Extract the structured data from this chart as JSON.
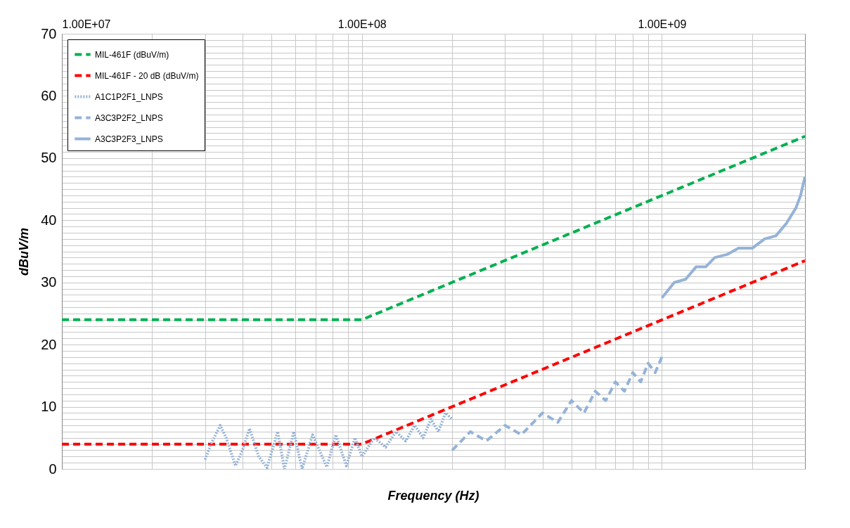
{
  "chart_data": {
    "type": "line",
    "xlabel": "Frequency (Hz)",
    "ylabel": "dBuV/m",
    "log": "x",
    "grid": true,
    "legend": "top left",
    "marker": "none",
    "xlim": [
      10000000,
      3000000000
    ],
    "xticks": [
      {
        "value": 10000000,
        "label": "1.00E+07"
      },
      {
        "value": 20000000,
        "label": null
      },
      {
        "value": 30000000,
        "label": null
      },
      {
        "value": 40000000,
        "label": null
      },
      {
        "value": 50000000,
        "label": null
      },
      {
        "value": 60000000,
        "label": null
      },
      {
        "value": 70000000,
        "label": null
      },
      {
        "value": 80000000,
        "label": null
      },
      {
        "value": 90000000,
        "label": null
      },
      {
        "value": 100000000,
        "label": "1.00E+08"
      },
      {
        "value": 200000000,
        "label": null
      },
      {
        "value": 300000000,
        "label": null
      },
      {
        "value": 400000000,
        "label": null
      },
      {
        "value": 500000000,
        "label": null
      },
      {
        "value": 600000000,
        "label": null
      },
      {
        "value": 700000000,
        "label": null
      },
      {
        "value": 800000000,
        "label": null
      },
      {
        "value": 900000000,
        "label": null
      },
      {
        "value": 1000000000,
        "label": "1.00E+09"
      },
      {
        "value": 2000000000,
        "label": null
      }
    ],
    "ylim": [
      0,
      70
    ],
    "yticks": [
      0,
      {
        "value": 1,
        "label": null
      },
      {
        "value": 2,
        "label": null
      },
      {
        "value": 3,
        "label": null
      },
      {
        "value": 4,
        "label": null
      },
      {
        "value": 5,
        "label": null
      },
      {
        "value": 6,
        "label": null
      },
      {
        "value": 7,
        "label": null
      },
      {
        "value": 8,
        "label": null
      },
      {
        "value": 9,
        "label": null
      },
      10,
      {
        "value": 11,
        "label": null
      },
      {
        "value": 12,
        "label": null
      },
      {
        "value": 13,
        "label": null
      },
      {
        "value": 14,
        "label": null
      },
      {
        "value": 15,
        "label": null
      },
      {
        "value": 16,
        "label": null
      },
      {
        "value": 17,
        "label": null
      },
      {
        "value": 18,
        "label": null
      },
      {
        "value": 19,
        "label": null
      },
      20,
      {
        "value": 21,
        "label": null
      },
      {
        "value": 22,
        "label": null
      },
      {
        "value": 23,
        "label": null
      },
      {
        "value": 24,
        "label": null
      },
      {
        "value": 25,
        "label": null
      },
      {
        "value": 26,
        "label": null
      },
      {
        "value": 27,
        "label": null
      },
      {
        "value": 28,
        "label": null
      },
      {
        "value": 29,
        "label": null
      },
      30,
      {
        "value": 31,
        "label": null
      },
      {
        "value": 32,
        "label": null
      },
      {
        "value": 33,
        "label": null
      },
      {
        "value": 34,
        "label": null
      },
      {
        "value": 35,
        "label": null
      },
      {
        "value": 36,
        "label": null
      },
      {
        "value": 37,
        "label": null
      },
      {
        "value": 38,
        "label": null
      },
      {
        "value": 39,
        "label": null
      },
      40,
      {
        "value": 41,
        "label": null
      },
      {
        "value": 42,
        "label": null
      },
      {
        "value": 43,
        "label": null
      },
      {
        "value": 44,
        "label": null
      },
      {
        "value": 45,
        "label": null
      },
      {
        "value": 46,
        "label": null
      },
      {
        "value": 47,
        "label": null
      },
      {
        "value": 48,
        "label": null
      },
      {
        "value": 49,
        "label": null
      },
      50,
      {
        "value": 51,
        "label": null
      },
      {
        "value": 52,
        "label": null
      },
      {
        "value": 53,
        "label": null
      },
      {
        "value": 54,
        "label": null
      },
      {
        "value": 55,
        "label": null
      },
      {
        "value": 56,
        "label": null
      },
      {
        "value": 57,
        "label": null
      },
      {
        "value": 58,
        "label": null
      },
      {
        "value": 59,
        "label": null
      },
      60,
      {
        "value": 61,
        "label": null
      },
      {
        "value": 62,
        "label": null
      },
      {
        "value": 63,
        "label": null
      },
      {
        "value": 64,
        "label": null
      },
      {
        "value": 65,
        "label": null
      },
      {
        "value": 66,
        "label": null
      },
      {
        "value": 67,
        "label": null
      },
      {
        "value": 68,
        "label": null
      },
      {
        "value": 69,
        "label": null
      },
      70
    ],
    "series": [
      {
        "name": "MIL-461F (dBuV/m)",
        "color": "#00b050",
        "line_style": "dashed",
        "x": [
          10000000,
          100000000,
          3000000000
        ],
        "values": [
          24,
          24,
          53.5
        ]
      },
      {
        "name": "MIL-461F - 20 dB (dBuV/m)",
        "color": "#ff0000",
        "line_style": "dashed",
        "x": [
          10000000,
          100000000,
          3000000000
        ],
        "values": [
          4,
          4,
          33.5
        ]
      },
      {
        "name": "A1C1P2F1_LNPS",
        "color": "#95b3d7",
        "line_style": "dotted",
        "x": [
          30000000,
          31400000,
          33700000,
          35300000,
          37900000,
          40000000,
          42200000,
          45300000,
          48300000,
          52400000,
          55200000,
          59300000,
          63200000,
          68500000,
          76400000,
          81900000,
          88800000,
          94800000,
          100000000,
          110000000,
          120000000,
          130000000,
          140000000,
          150000000,
          160000000,
          170000000,
          180000000,
          190000000,
          200000000
        ],
        "values": [
          1.5,
          4,
          7,
          5,
          0.5,
          3,
          6.5,
          2,
          0.2,
          6,
          0,
          6,
          0,
          5.5,
          0.3,
          5.5,
          0.5,
          5,
          2,
          5,
          3.5,
          6,
          4.5,
          7,
          5,
          8,
          6,
          9,
          8
        ]
      },
      {
        "name": "A3C3P2F2_LNPS",
        "color": "#95b3d7",
        "line_style": "dashed",
        "x": [
          200000000,
          230000000,
          260000000,
          300000000,
          340000000,
          400000000,
          450000000,
          500000000,
          550000000,
          600000000,
          650000000,
          700000000,
          750000000,
          800000000,
          850000000,
          900000000,
          950000000,
          1000000000
        ],
        "values": [
          3,
          6,
          4.5,
          7,
          5.5,
          9,
          7.5,
          11,
          9,
          12.5,
          11,
          14,
          12.5,
          15.5,
          14,
          17,
          15.5,
          18
        ]
      },
      {
        "name": "A3C3P2F3_LNPS",
        "color": "#95b3d7",
        "line_style": "solid",
        "x": [
          1000000000,
          1100000000,
          1200000000,
          1300000000,
          1400000000,
          1500000000,
          1650000000,
          1800000000,
          2000000000,
          2200000000,
          2400000000,
          2600000000,
          2800000000,
          2900000000,
          3000000000
        ],
        "values": [
          27.5,
          30,
          30.5,
          32.5,
          32.5,
          34,
          34.5,
          35.5,
          35.5,
          37,
          37.5,
          39.5,
          42,
          44,
          47
        ]
      }
    ]
  }
}
